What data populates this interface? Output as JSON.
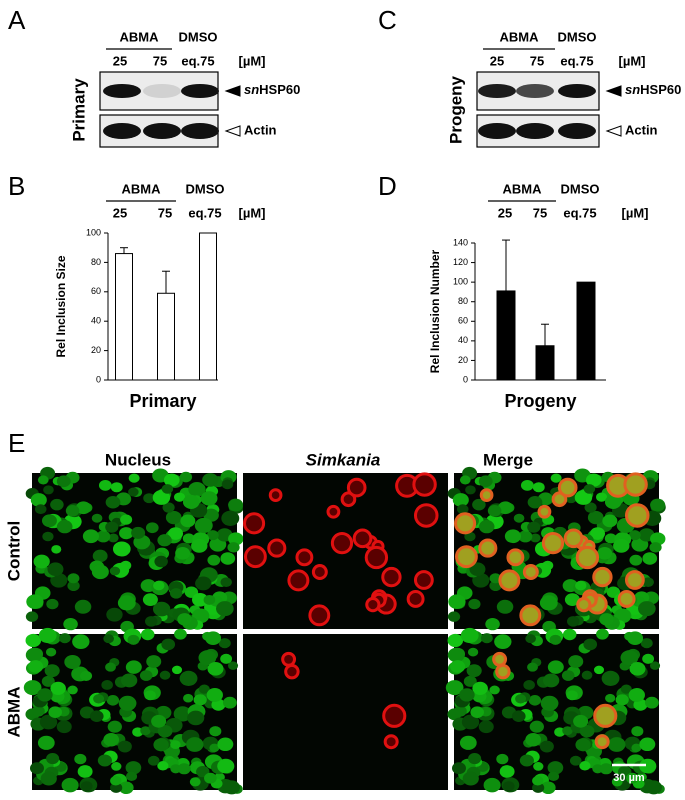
{
  "panel_labels": [
    "A",
    "B",
    "C",
    "D",
    "E"
  ],
  "blots": [
    {
      "group": "ABMA",
      "control": "DMSO",
      "lanes": [
        "25",
        "75",
        "eq.75"
      ],
      "unit": "[µM]",
      "sample": "Primary",
      "target": {
        "prefix": "sn",
        "name": "HSP60"
      },
      "loading": "Actin"
    },
    {
      "group": "ABMA",
      "control": "DMSO",
      "lanes": [
        "25",
        "75",
        "eq.75"
      ],
      "unit": "[µM]",
      "sample": "Progeny",
      "target": {
        "prefix": "sn",
        "name": "HSP60"
      },
      "loading": "Actin"
    }
  ],
  "chart_data": [
    {
      "type": "bar",
      "group": "ABMA",
      "control": "DMSO",
      "categories": [
        "25",
        "75",
        "eq.75"
      ],
      "unit": "[µM]",
      "y_label": "Rel Inclusion Size",
      "x_label": "Primary",
      "values": [
        86,
        59,
        100
      ],
      "errors": [
        4,
        15,
        null
      ],
      "color": "#ffffff",
      "ylim": [
        0,
        100
      ],
      "yticks": [
        0,
        20,
        40,
        60,
        80,
        100
      ]
    },
    {
      "type": "bar",
      "group": "ABMA",
      "control": "DMSO",
      "categories": [
        "25",
        "75",
        "eq.75"
      ],
      "unit": "[µM]",
      "y_label": "Rel Inclusion Number",
      "x_label": "Progeny",
      "values": [
        91,
        35,
        100
      ],
      "errors": [
        52,
        22,
        null
      ],
      "color": "#000000",
      "ylim": [
        0,
        140
      ],
      "yticks": [
        0,
        20,
        40,
        60,
        80,
        100,
        120,
        140
      ]
    }
  ],
  "microscopy": {
    "columns": [
      "Nucleus",
      "Simkania",
      "Merge"
    ],
    "rows": [
      "Control",
      "ABMA"
    ],
    "scale_bar": "30 µm"
  }
}
